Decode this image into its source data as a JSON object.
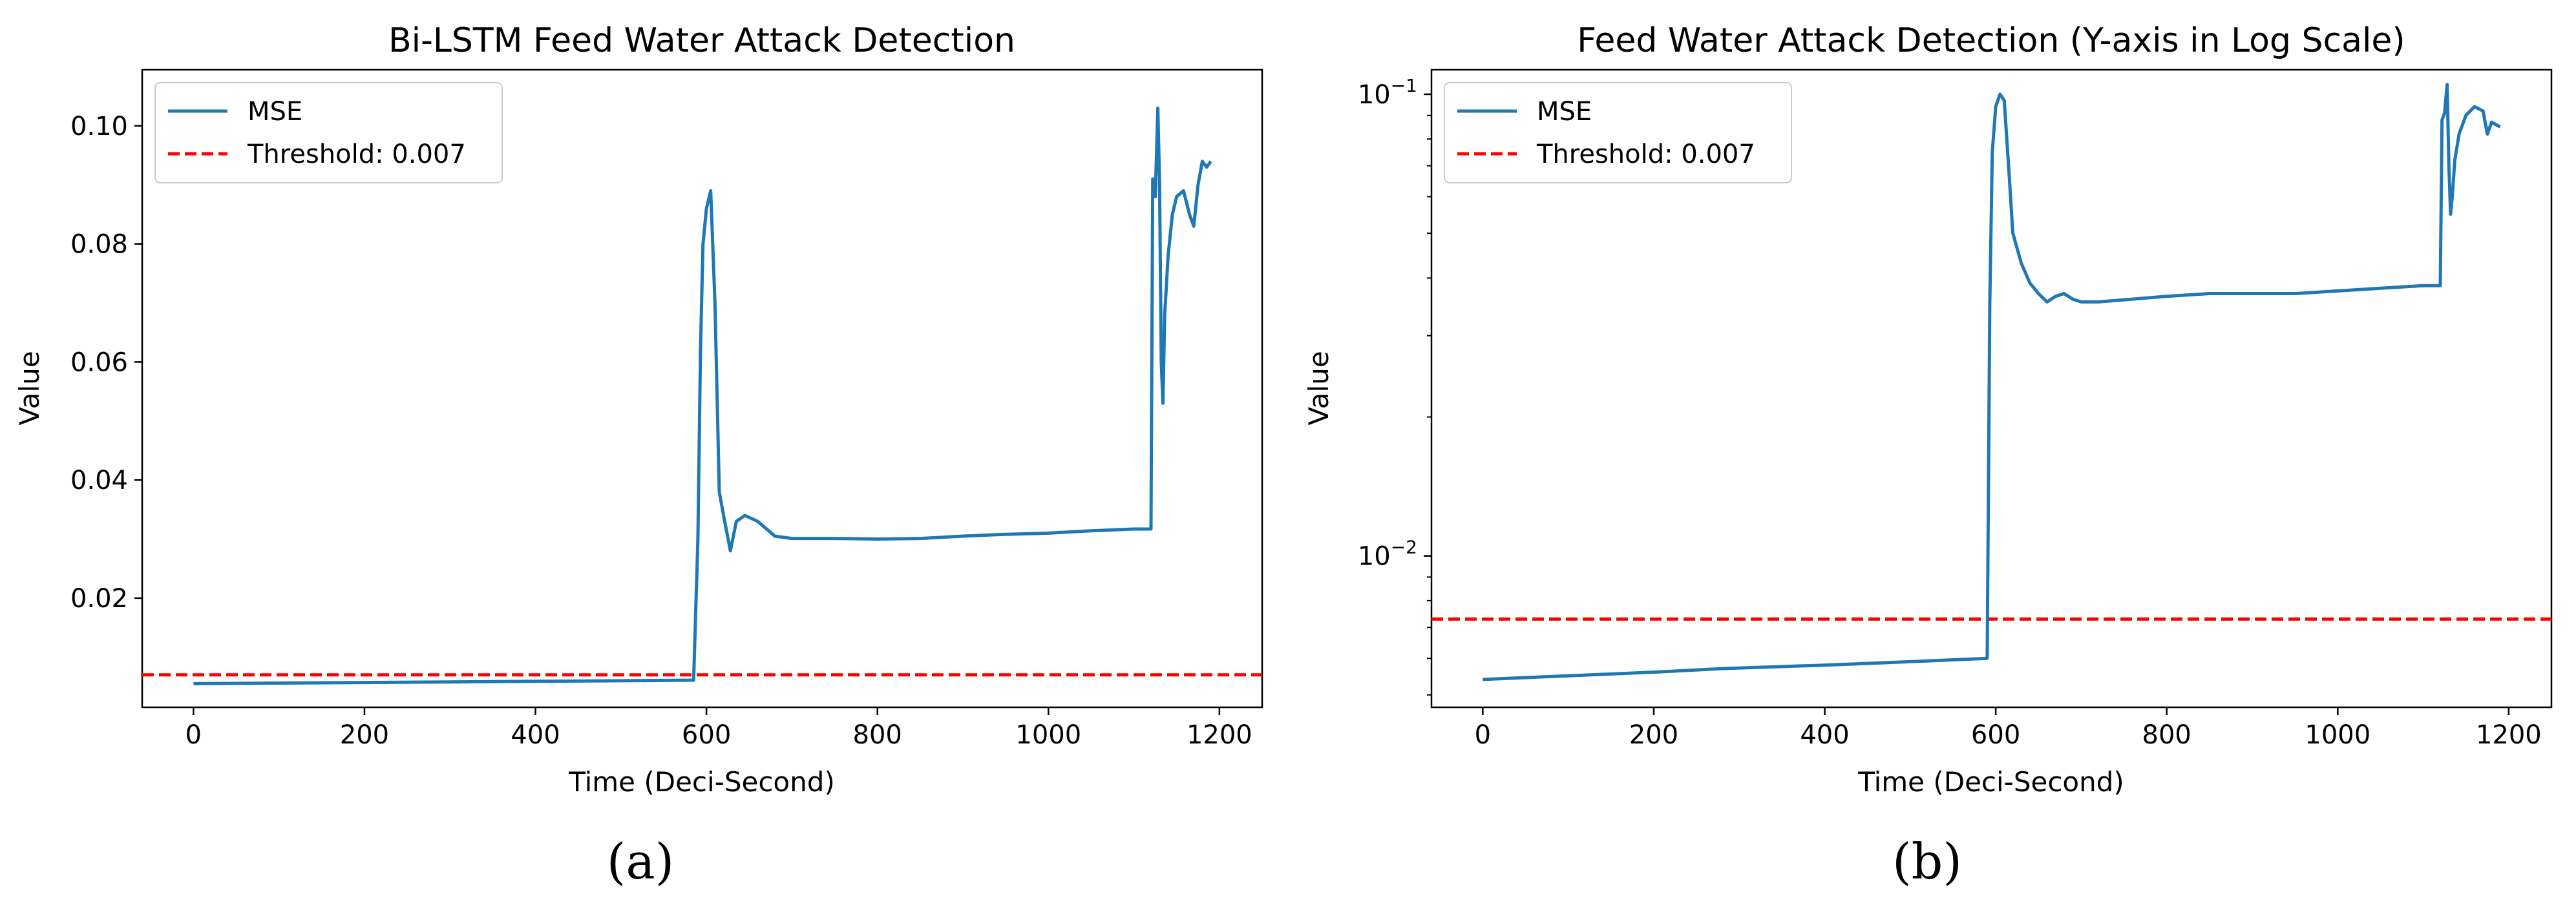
{
  "colors": {
    "series": "#1f77b4",
    "threshold": "#ff0000",
    "axis": "#000000",
    "legend_border": "#cccccc"
  },
  "captions": [
    "(a)",
    "(b)"
  ],
  "chart_data": [
    {
      "type": "line",
      "title": "Bi-LSTM Feed Water Attack Detection",
      "xlabel": "Time (Deci-Second)",
      "ylabel": "Value",
      "yscale": "linear",
      "xlim": [
        -60,
        1250
      ],
      "ylim": [
        0.0015,
        0.1095
      ],
      "xticks": [
        0,
        200,
        400,
        600,
        800,
        1000,
        1200
      ],
      "xticklabels": [
        "0",
        "200",
        "400",
        "600",
        "800",
        "1000",
        "1200"
      ],
      "yticks": [
        0.02,
        0.04,
        0.06,
        0.08,
        0.1
      ],
      "yticklabels": [
        "0.02",
        "0.04",
        "0.06",
        "0.08",
        "0.10"
      ],
      "legend": {
        "location": "upper left",
        "entries": [
          "MSE",
          "Threshold: 0.007"
        ]
      },
      "threshold": {
        "label": "Threshold: 0.007",
        "value": 0.007,
        "style": "dashed"
      },
      "series": [
        {
          "name": "MSE",
          "x": [
            0,
            100,
            200,
            300,
            400,
            500,
            585,
            590,
            593,
            596,
            600,
            605,
            610,
            615,
            620,
            628,
            635,
            645,
            660,
            680,
            700,
            750,
            800,
            850,
            900,
            950,
            1000,
            1050,
            1100,
            1120,
            1122,
            1125,
            1128,
            1130,
            1132,
            1134,
            1136,
            1140,
            1145,
            1150,
            1158,
            1165,
            1170,
            1175,
            1180,
            1185,
            1190
          ],
          "y": [
            0.0055,
            0.0056,
            0.0057,
            0.0058,
            0.0059,
            0.006,
            0.0061,
            0.03,
            0.062,
            0.08,
            0.086,
            0.089,
            0.07,
            0.038,
            0.034,
            0.028,
            0.033,
            0.034,
            0.033,
            0.0305,
            0.0301,
            0.0301,
            0.03,
            0.0301,
            0.0305,
            0.0308,
            0.031,
            0.0314,
            0.0317,
            0.0317,
            0.091,
            0.088,
            0.103,
            0.09,
            0.06,
            0.053,
            0.068,
            0.078,
            0.085,
            0.088,
            0.089,
            0.085,
            0.083,
            0.09,
            0.094,
            0.093,
            0.094
          ]
        }
      ]
    },
    {
      "type": "line",
      "title": "Feed Water Attack Detection (Y-axis in Log Scale)",
      "xlabel": "Time (Deci-Second)",
      "ylabel": "Value",
      "yscale": "log",
      "xlim": [
        -60,
        1250
      ],
      "ylim": [
        0.0047,
        0.113
      ],
      "xticks": [
        0,
        200,
        400,
        600,
        800,
        1000,
        1200
      ],
      "xticklabels": [
        "0",
        "200",
        "400",
        "600",
        "800",
        "1000",
        "1200"
      ],
      "yticks": [
        0.01,
        0.1
      ],
      "yticklabels": [
        {
          "base": "10",
          "exp": "−2"
        },
        {
          "base": "10",
          "exp": "−1"
        }
      ],
      "legend": {
        "location": "upper left",
        "entries": [
          "MSE",
          "Threshold: 0.007"
        ]
      },
      "threshold": {
        "label": "Threshold: 0.007",
        "value": 0.0073,
        "style": "dashed"
      },
      "series": [
        {
          "name": "MSE",
          "x": [
            0,
            100,
            200,
            280,
            400,
            500,
            590,
            593,
            596,
            600,
            605,
            610,
            615,
            620,
            630,
            640,
            650,
            660,
            670,
            680,
            690,
            700,
            720,
            800,
            850,
            900,
            950,
            1000,
            1050,
            1100,
            1120,
            1122,
            1125,
            1128,
            1130,
            1132,
            1134,
            1137,
            1142,
            1150,
            1160,
            1170,
            1175,
            1180,
            1185,
            1190
          ],
          "y": [
            0.0054,
            0.0055,
            0.0056,
            0.0057,
            0.0058,
            0.0059,
            0.006,
            0.035,
            0.075,
            0.094,
            0.1,
            0.097,
            0.07,
            0.05,
            0.043,
            0.039,
            0.037,
            0.0355,
            0.0365,
            0.037,
            0.036,
            0.0355,
            0.0355,
            0.0365,
            0.037,
            0.037,
            0.037,
            0.0375,
            0.038,
            0.0385,
            0.0385,
            0.088,
            0.091,
            0.105,
            0.07,
            0.055,
            0.06,
            0.072,
            0.082,
            0.09,
            0.094,
            0.092,
            0.082,
            0.087,
            0.086,
            0.085
          ]
        }
      ]
    }
  ]
}
